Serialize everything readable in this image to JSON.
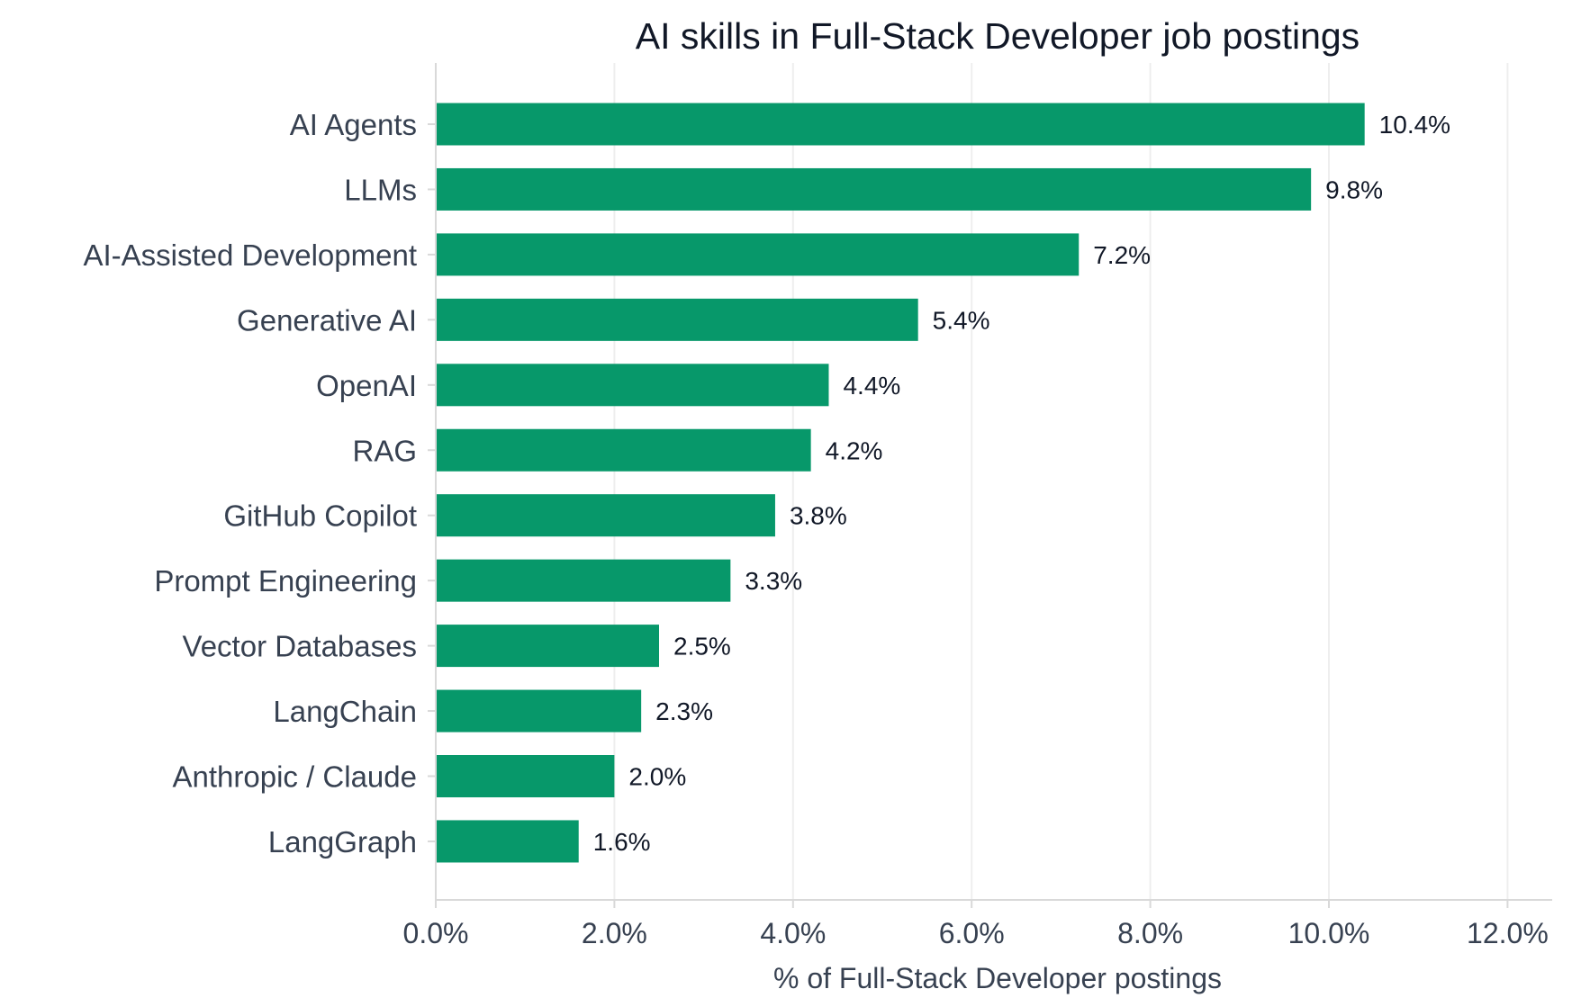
{
  "colors": {
    "bar": "#07986a",
    "grid": "#eeeeee",
    "axis": "#d9d9d9",
    "text": "#374151",
    "title": "#111827"
  },
  "chart_data": {
    "type": "bar",
    "orientation": "horizontal",
    "title": "AI skills in Full-Stack Developer job postings",
    "xlabel": "% of Full-Stack Developer postings",
    "ylabel": "",
    "xlim": [
      0,
      12.5
    ],
    "xticks": [
      0,
      2,
      4,
      6,
      8,
      10,
      12
    ],
    "xtick_labels": [
      "0.0%",
      "2.0%",
      "4.0%",
      "6.0%",
      "8.0%",
      "10.0%",
      "12.0%"
    ],
    "grid": "vertical",
    "legend": "none",
    "categories": [
      "AI Agents",
      "LLMs",
      "AI-Assisted Development",
      "Generative AI",
      "OpenAI",
      "RAG",
      "GitHub Copilot",
      "Prompt Engineering",
      "Vector Databases",
      "LangChain",
      "Anthropic / Claude",
      "LangGraph"
    ],
    "values": [
      10.4,
      9.8,
      7.2,
      5.4,
      4.4,
      4.2,
      3.8,
      3.3,
      2.5,
      2.3,
      2.0,
      1.6
    ],
    "data_labels": [
      "10.4%",
      "9.8%",
      "7.2%",
      "5.4%",
      "4.4%",
      "4.2%",
      "3.8%",
      "3.3%",
      "2.5%",
      "2.3%",
      "2.0%",
      "1.6%"
    ]
  }
}
